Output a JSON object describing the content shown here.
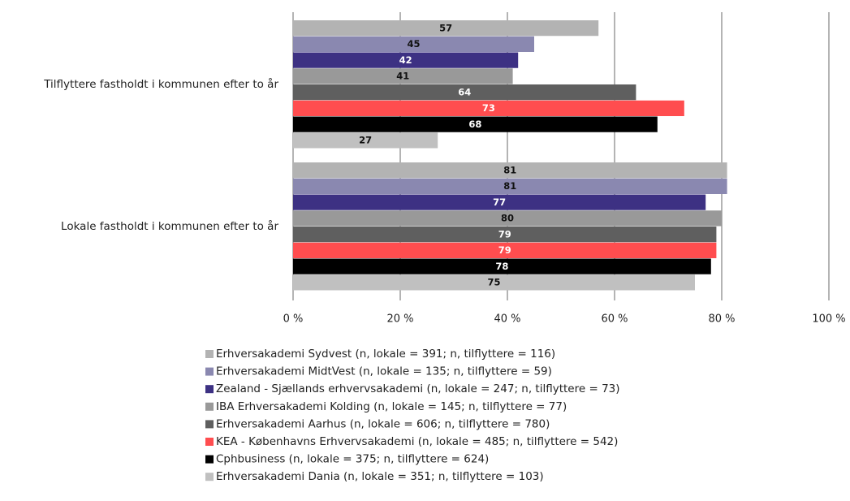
{
  "chart_data": {
    "type": "hbar",
    "categories": [
      "Tilflyttere fastholdt i kommunen efter to år",
      "Lokale fastholdt i kommunen efter to år"
    ],
    "series": [
      {
        "name": "Erhversakademi Sydvest (n, lokale = 391; n, tilflyttere = 116)",
        "color": "#b3b3b3",
        "values": [
          57,
          81
        ]
      },
      {
        "name": "Erhversakademi MidtVest (n, lokale = 135; n, tilflyttere = 59)",
        "color": "#8a88b0",
        "values": [
          45,
          81
        ]
      },
      {
        "name": "Zealand - Sjællands erhvervsakademi (n, lokale = 247; n, tilflyttere = 73)",
        "color": "#3d3183",
        "values": [
          42,
          77
        ]
      },
      {
        "name": "IBA Erhversakademi Kolding (n, lokale = 145; n, tilflyttere = 77)",
        "color": "#999999",
        "values": [
          41,
          80
        ]
      },
      {
        "name": "Erhversakademi Aarhus (n, lokale = 606; n, tilflyttere = 780)",
        "color": "#5f5f5f",
        "values": [
          64,
          79
        ]
      },
      {
        "name": "KEA - Københavns Erhvervsakademi (n, lokale = 485; n, tilflyttere = 542)",
        "color": "#ff4d4f",
        "values": [
          73,
          79
        ]
      },
      {
        "name": "Cphbusiness (n, lokale = 375; n, tilflyttere = 624)",
        "color": "#000000",
        "values": [
          68,
          78
        ]
      },
      {
        "name": "Erhversakademi Dania (n, lokale = 351; n, tilflyttere = 103)",
        "color": "#c0c0c0",
        "values": [
          27,
          75
        ]
      }
    ],
    "xlim": [
      0,
      100
    ],
    "xticks": [
      {
        "value": 0,
        "label": "0 %"
      },
      {
        "value": 20,
        "label": "20 %"
      },
      {
        "value": 40,
        "label": "40 %"
      },
      {
        "value": 60,
        "label": "60 %"
      },
      {
        "value": 80,
        "label": "80 %"
      },
      {
        "value": 100,
        "label": "100 %"
      }
    ],
    "grid": true
  }
}
